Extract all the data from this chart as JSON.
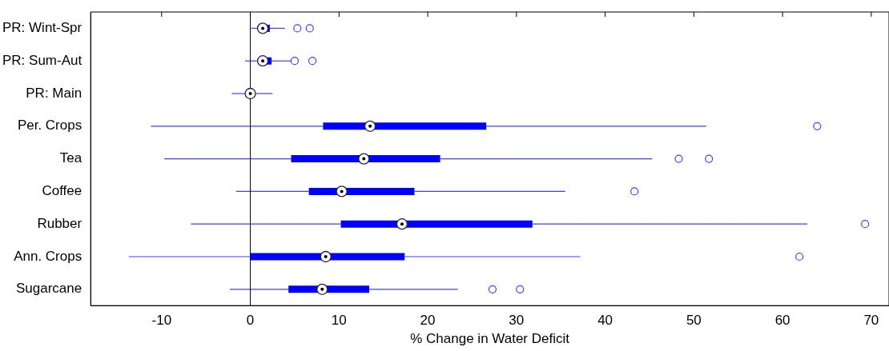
{
  "chart_data": {
    "type": "box",
    "orientation": "horizontal",
    "xlabel": "% Change in Water Deficit",
    "categories": [
      "PR: Wint-Spr",
      "PR: Sum-Aut",
      "PR: Main",
      "Per. Crops",
      "Tea",
      "Coffee",
      "Rubber",
      "Ann. Crops",
      "Sugarcane"
    ],
    "series": [
      {
        "color": "#0000ff",
        "boxes": [
          {
            "low": 0.1,
            "q1": 1.0,
            "median": 1.4,
            "q3": 2.2,
            "high": 3.9,
            "outliers": [
              5.3,
              6.7
            ]
          },
          {
            "low": -0.6,
            "q1": 1.0,
            "median": 1.4,
            "q3": 2.4,
            "high": 4.6,
            "outliers": [
              5.0,
              7.0
            ]
          },
          {
            "low": -2.1,
            "q1": -0.5,
            "median": 0.0,
            "q3": 0.4,
            "high": 2.5
          },
          {
            "low": -11.2,
            "q1": 8.2,
            "median": 13.5,
            "q3": 26.6,
            "high": 51.4,
            "outliers": [
              63.9
            ]
          },
          {
            "low": -9.7,
            "q1": 4.6,
            "median": 12.8,
            "q3": 21.4,
            "high": 45.3,
            "outliers": [
              48.3,
              51.7
            ]
          },
          {
            "low": -1.6,
            "q1": 6.6,
            "median": 10.3,
            "q3": 18.5,
            "high": 35.5,
            "outliers": [
              43.3
            ]
          },
          {
            "low": -6.7,
            "q1": 10.2,
            "median": 17.1,
            "q3": 31.8,
            "high": 62.8,
            "outliers": [
              69.3
            ]
          },
          {
            "low": -13.7,
            "q1": 0.0,
            "median": 8.5,
            "q3": 17.4,
            "high": 37.2,
            "outliers": [
              61.9
            ]
          },
          {
            "low": -2.3,
            "q1": 4.3,
            "median": 8.1,
            "q3": 13.4,
            "high": 23.4,
            "outliers": [
              27.3,
              30.4
            ]
          }
        ]
      }
    ],
    "xlim": [
      -18,
      72
    ],
    "xticks": [
      -10,
      0,
      10,
      20,
      30,
      40,
      50,
      60,
      70
    ],
    "ref_lines": [
      {
        "axis": "x",
        "value": 0,
        "color": "#000000"
      }
    ],
    "grid": false,
    "legend": false
  }
}
